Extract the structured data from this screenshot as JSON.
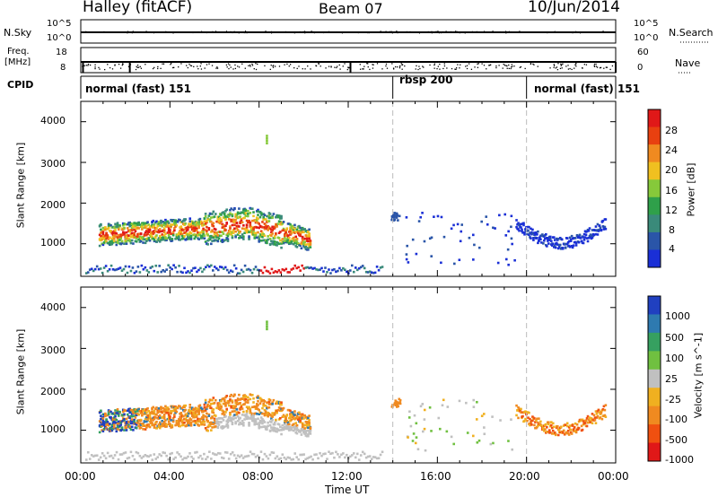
{
  "header": {
    "station": "Halley (fitACF)",
    "beam": "Beam 07",
    "date": "10/Jun/2014"
  },
  "strips": {
    "nsky_label": "N.Sky",
    "nsearch_label": "N.Search",
    "nsky_ticks": [
      "10^5",
      "10^0"
    ],
    "nsky_right_ticks": [
      "10^5",
      "10^0"
    ],
    "freq_label_1": "Freq.",
    "freq_label_2": "[MHz]",
    "freq_ticks": [
      "18",
      "8"
    ],
    "nave_label": "Nave",
    "nave_ticks": [
      "60",
      "0"
    ],
    "cpid_label": "CPID",
    "cpid_segments": [
      {
        "label": "normal (fast) 151",
        "start": 0,
        "end": 14
      },
      {
        "label": "rbsp 200",
        "start": 14,
        "end": 20
      },
      {
        "label": "normal (fast) 151",
        "start": 20,
        "end": 24
      }
    ]
  },
  "chart_data": [
    {
      "type": "heatmap",
      "title": "",
      "ylabel": "Slant Range [km]",
      "colorbar_label": "Power [dB]",
      "yticks": [
        "4000",
        "3000",
        "2000",
        "1000"
      ],
      "ylim": [
        200,
        4500
      ],
      "colorbar_ticks": [
        "28",
        "24",
        "20",
        "16",
        "12",
        "8",
        "4"
      ],
      "colors": [
        "#1a2fd6",
        "#2a55a8",
        "#3a8a7a",
        "#2fa04a",
        "#86c93a",
        "#f0c020",
        "#f08a20",
        "#e84010",
        "#e01818"
      ],
      "echo_regions": [
        {
          "x": [
            0.8,
            10.3
          ],
          "range_km": [
            700,
            1850
          ],
          "description": "main echo band"
        },
        {
          "x": [
            13.9,
            14.3
          ],
          "range_km": [
            1600,
            1800
          ]
        },
        {
          "x": [
            19.5,
            23.5
          ],
          "range_km": [
            900,
            1800
          ]
        }
      ]
    },
    {
      "type": "heatmap",
      "title": "",
      "ylabel": "Slant Range [km]",
      "xlabel": "Time UT",
      "colorbar_label": "Velocity [m s^-1]",
      "yticks": [
        "4000",
        "3000",
        "2000",
        "1000"
      ],
      "ylim": [
        200,
        4500
      ],
      "xticks": [
        "00:00",
        "04:00",
        "08:00",
        "12:00",
        "16:00",
        "20:00",
        "00:00"
      ],
      "xlim": [
        0,
        24
      ],
      "colorbar_ticks": [
        "1000",
        "500",
        "100",
        "25",
        "-25",
        "-100",
        "-500",
        "-1000"
      ],
      "colors": [
        "#2040c0",
        "#2e7ab0",
        "#36a060",
        "#70c040",
        "#c0c0c0",
        "#f0b020",
        "#f08a20",
        "#f05010",
        "#e01818"
      ]
    }
  ]
}
